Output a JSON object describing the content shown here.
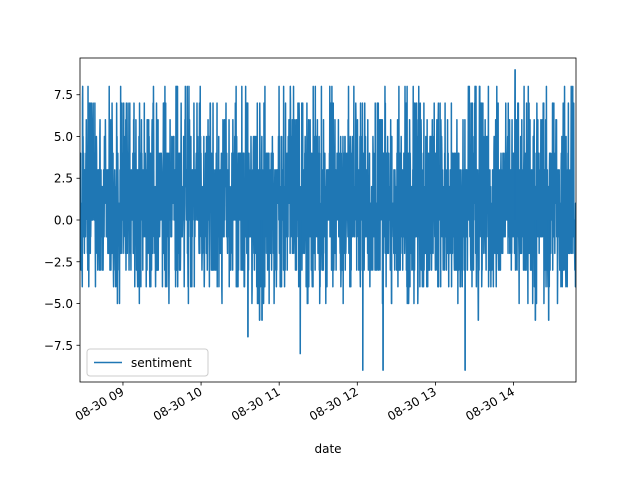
{
  "chart_data": {
    "type": "line",
    "xlabel": "date",
    "ylabel": "",
    "title": "",
    "x_range_hours": [
      8.45,
      14.8
    ],
    "ylim": [
      -9.7,
      9.7
    ],
    "x_ticks": [
      {
        "hour": 9,
        "label": "08-30 09"
      },
      {
        "hour": 10,
        "label": "08-30 10"
      },
      {
        "hour": 11,
        "label": "08-30 11"
      },
      {
        "hour": 12,
        "label": "08-30 12"
      },
      {
        "hour": 13,
        "label": "08-30 13"
      },
      {
        "hour": 14,
        "label": "08-30 14"
      }
    ],
    "y_ticks": [
      {
        "value": 7.5,
        "label": "7.5"
      },
      {
        "value": 5.0,
        "label": "5.0"
      },
      {
        "value": 2.5,
        "label": "2.5"
      },
      {
        "value": 0.0,
        "label": "0.0"
      },
      {
        "value": -2.5,
        "label": "−2.5"
      },
      {
        "value": -5.0,
        "label": "−5.0"
      },
      {
        "value": -7.5,
        "label": "−7.5"
      }
    ],
    "grid": false,
    "legend_position": "lower-left",
    "series": [
      {
        "name": "sentiment",
        "color": "#1f77b4",
        "value_min": -9,
        "value_max": 9,
        "notable_points": [
          {
            "hour": 14.02,
            "value": 9
          },
          {
            "hour": 12.07,
            "value": -9
          },
          {
            "hour": 12.33,
            "value": -9
          },
          {
            "hour": 13.38,
            "value": -9
          },
          {
            "hour": 11.27,
            "value": -8
          },
          {
            "hour": 10.6,
            "value": -7
          },
          {
            "hour": 10.75,
            "value": -6
          },
          {
            "hour": 10.78,
            "value": -6
          },
          {
            "hour": 13.55,
            "value": -6
          },
          {
            "hour": 14.28,
            "value": -6
          },
          {
            "hour": 14.45,
            "value": -6
          }
        ]
      }
    ]
  }
}
